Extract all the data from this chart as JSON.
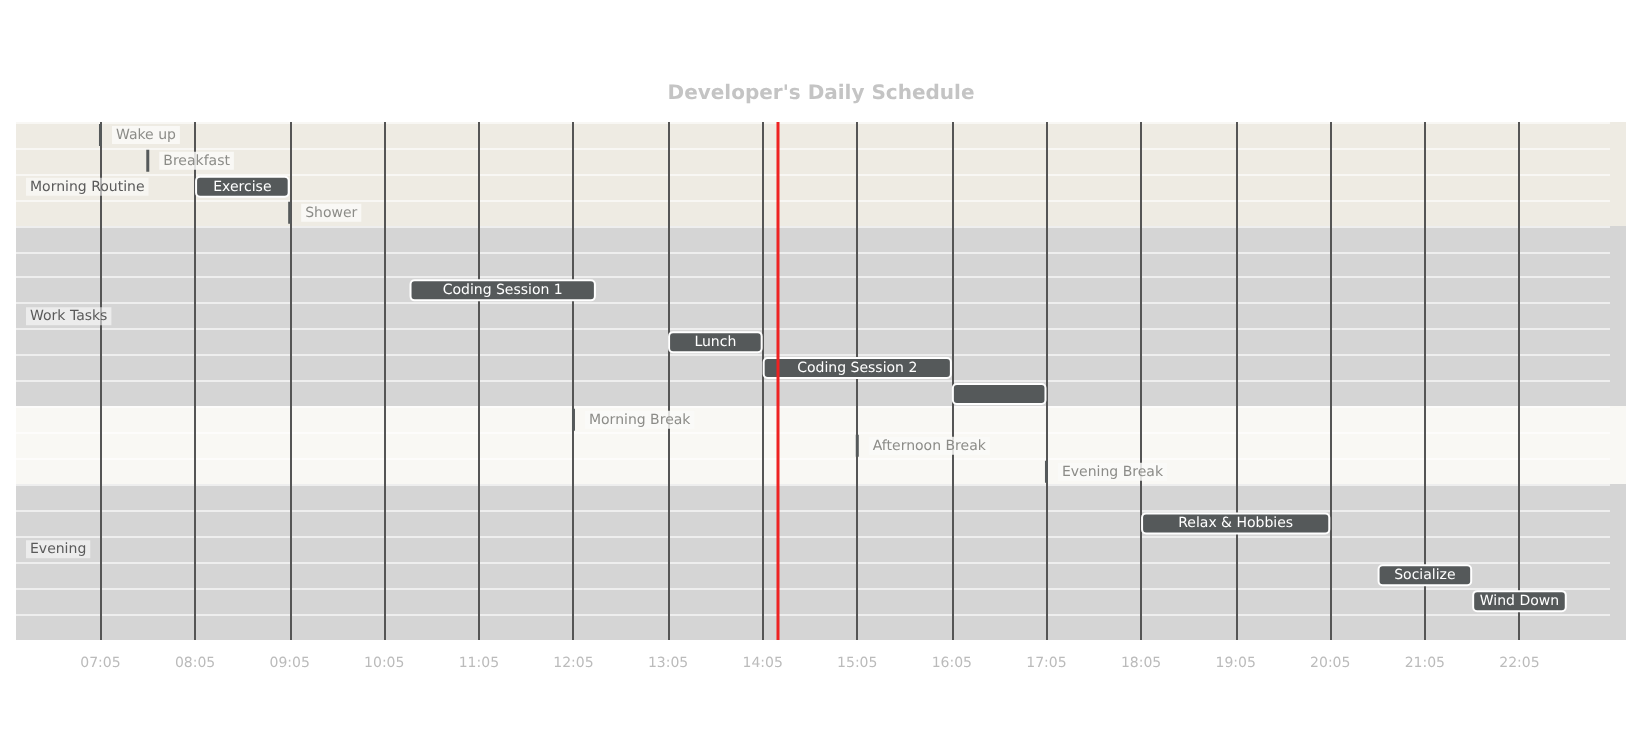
{
  "chart_data": {
    "type": "bar",
    "title": "Developer's Daily Schedule",
    "orientation": "horizontal",
    "categories": [
      null,
      null,
      "Morning Routine",
      null,
      null,
      null,
      null,
      "Work Tasks",
      null,
      null,
      null,
      null,
      null,
      null,
      null,
      null,
      "Evening",
      null,
      null,
      null
    ],
    "base": [
      7.083,
      7.583,
      8.083,
      9.083,
      null,
      null,
      10.35,
      null,
      13.083,
      14.083,
      16.083,
      12.083,
      15.083,
      17.083,
      null,
      18.083,
      null,
      20.583,
      21.583,
      null
    ],
    "values": [
      0,
      0,
      1,
      0,
      null,
      null,
      1.97,
      null,
      1,
      2,
      1,
      0,
      0,
      0,
      null,
      2,
      null,
      1,
      1,
      null
    ],
    "value_labels": [
      "Wake up",
      "Breakfast",
      "Exercise",
      "Shower",
      null,
      null,
      "Coding Session 1",
      null,
      "Lunch",
      "Coding Session 2",
      null,
      "Morning Break",
      "Afternoon Break",
      "Evening Break",
      null,
      "Relax & Hobbies",
      null,
      "Socialize",
      "Wind Down",
      null
    ],
    "color": "#55595a",
    "xlim": [
      6.19,
      23.04
    ],
    "xticks": [
      {
        "value": 7.083,
        "label": "07:05"
      },
      {
        "value": 8.083,
        "label": "08:05"
      },
      {
        "value": 9.083,
        "label": "09:05"
      },
      {
        "value": 10.083,
        "label": "10:05"
      },
      {
        "value": 11.083,
        "label": "11:05"
      },
      {
        "value": 12.083,
        "label": "12:05"
      },
      {
        "value": 13.083,
        "label": "13:05"
      },
      {
        "value": 14.083,
        "label": "14:05"
      },
      {
        "value": 15.083,
        "label": "15:05"
      },
      {
        "value": 16.083,
        "label": "16:05"
      },
      {
        "value": 17.083,
        "label": "17:05"
      },
      {
        "value": 18.083,
        "label": "18:05"
      },
      {
        "value": 19.083,
        "label": "19:05"
      },
      {
        "value": 20.083,
        "label": "20:05"
      },
      {
        "value": 21.083,
        "label": "21:05"
      },
      {
        "value": 22.083,
        "label": "22:05"
      }
    ],
    "ref_lines": [
      {
        "axis": "x",
        "value": 14.23,
        "label": null,
        "color": "#ee2222"
      }
    ],
    "grid": "x"
  }
}
